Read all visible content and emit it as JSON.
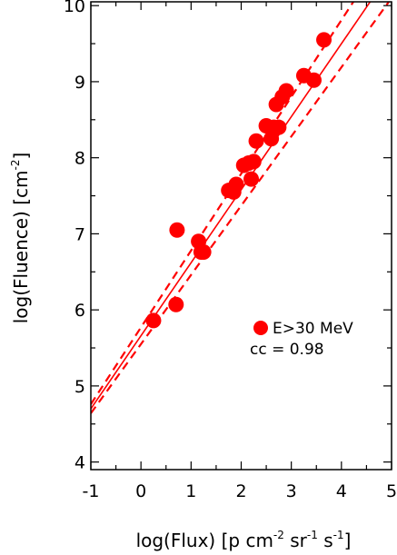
{
  "chart_data": {
    "type": "scatter",
    "x_label_parts": [
      "log(Flux) [p cm",
      "-2",
      " sr",
      "-1",
      " s",
      "-1",
      "]"
    ],
    "y_label_parts": [
      "log(Fluence) [cm",
      "-2",
      "]"
    ],
    "xlim": [
      -1,
      5
    ],
    "ylim": [
      3.9,
      10.05
    ],
    "x_ticks": [
      -1,
      0,
      1,
      2,
      3,
      4,
      5
    ],
    "x_tick_labels": [
      "-1",
      "0",
      "1",
      "2",
      "3",
      "4",
      "5"
    ],
    "y_ticks": [
      4,
      5,
      6,
      7,
      8,
      9,
      10
    ],
    "y_tick_labels": [
      "4",
      "5",
      "6",
      "7",
      "8",
      "9",
      "10"
    ],
    "marker_color": "#ff0000",
    "series": [
      {
        "name": "E>30 MeV",
        "points": [
          [
            0.25,
            5.86
          ],
          [
            0.7,
            6.07
          ],
          [
            0.72,
            7.05
          ],
          [
            1.15,
            6.9
          ],
          [
            1.2,
            6.76
          ],
          [
            1.25,
            6.76
          ],
          [
            1.75,
            7.57
          ],
          [
            1.85,
            7.55
          ],
          [
            1.9,
            7.65
          ],
          [
            2.05,
            7.9
          ],
          [
            2.15,
            7.93
          ],
          [
            2.2,
            7.72
          ],
          [
            2.25,
            7.95
          ],
          [
            2.3,
            8.22
          ],
          [
            2.5,
            8.42
          ],
          [
            2.6,
            8.25
          ],
          [
            2.65,
            8.4
          ],
          [
            2.7,
            8.7
          ],
          [
            2.75,
            8.4
          ],
          [
            2.82,
            8.8
          ],
          [
            2.9,
            8.88
          ],
          [
            3.25,
            9.08
          ],
          [
            3.45,
            9.02
          ],
          [
            3.65,
            9.55
          ]
        ]
      }
    ],
    "fit_line": {
      "slope": 0.96,
      "intercept": 5.66,
      "x_range": [
        -1,
        5
      ]
    },
    "confidence_bands": [
      {
        "slope": 0.91,
        "intercept": 5.55,
        "x_range": [
          -1,
          5
        ]
      },
      {
        "slope": 1.01,
        "intercept": 5.77,
        "x_range": [
          -1,
          5
        ]
      }
    ],
    "legend": {
      "label": "E>30 MeV",
      "position": "right-middle"
    },
    "annotation": "cc = 0.98"
  }
}
